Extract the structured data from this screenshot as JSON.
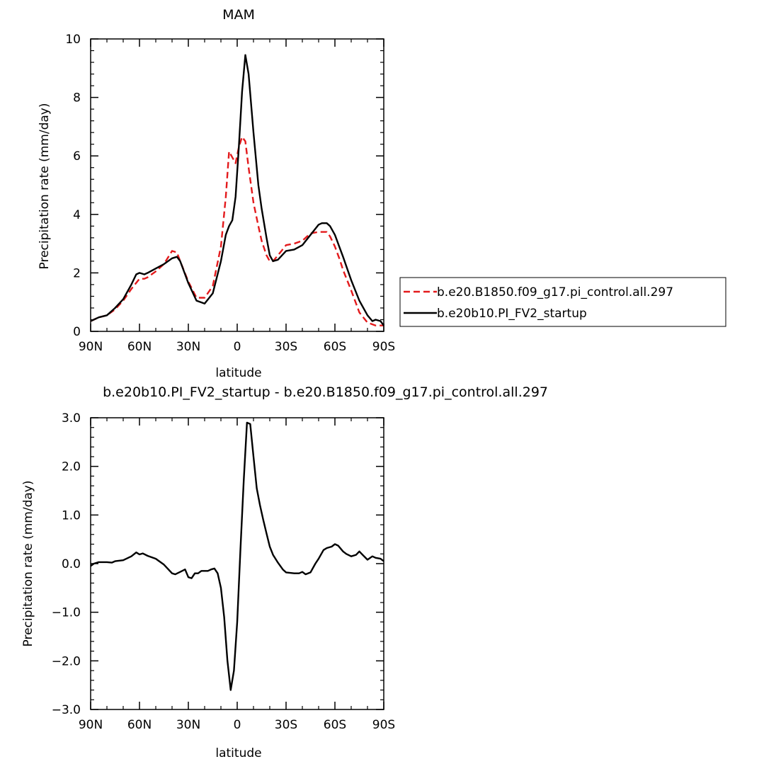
{
  "chart_data": [
    {
      "type": "line",
      "title": "MAM",
      "xlabel": "latitude",
      "ylabel": "Precipitation rate (mm/day)",
      "xlim": [
        -90,
        90
      ],
      "ylim": [
        0,
        10
      ],
      "xticks": [
        {
          "value": -90,
          "label": "90N"
        },
        {
          "value": -60,
          "label": "60N"
        },
        {
          "value": -30,
          "label": "30N"
        },
        {
          "value": 0,
          "label": "0"
        },
        {
          "value": 30,
          "label": "30S"
        },
        {
          "value": 60,
          "label": "60S"
        },
        {
          "value": 90,
          "label": "90S"
        }
      ],
      "yticks": [
        {
          "value": 0,
          "label": "0"
        },
        {
          "value": 2,
          "label": "2"
        },
        {
          "value": 4,
          "label": "4"
        },
        {
          "value": 6,
          "label": "6"
        },
        {
          "value": 8,
          "label": "8"
        },
        {
          "value": 10,
          "label": "10"
        }
      ],
      "grid": false,
      "legend_placement": "right",
      "series": [
        {
          "name": "b.e20.B1850.f09_g17.pi_control.all.297",
          "color": "#e31a1c",
          "dash": "dashed",
          "x": [
            -90,
            -85,
            -80,
            -75,
            -70,
            -65,
            -60,
            -57,
            -55,
            -50,
            -45,
            -40,
            -37,
            -35,
            -30,
            -25,
            -20,
            -15,
            -10,
            -7,
            -5,
            -3,
            -1,
            1,
            3,
            5,
            7,
            10,
            13,
            15,
            18,
            20,
            22,
            25,
            30,
            35,
            40,
            45,
            50,
            55,
            57,
            60,
            63,
            65,
            70,
            75,
            80,
            85,
            88,
            90
          ],
          "values": [
            0.35,
            0.48,
            0.55,
            0.75,
            1.05,
            1.45,
            1.8,
            1.8,
            1.85,
            2.05,
            2.3,
            2.75,
            2.7,
            2.4,
            1.7,
            1.15,
            1.15,
            1.55,
            2.9,
            4.6,
            6.15,
            5.95,
            5.75,
            6.3,
            6.65,
            6.5,
            5.6,
            4.4,
            3.6,
            3.1,
            2.6,
            2.4,
            2.4,
            2.6,
            2.95,
            3.0,
            3.1,
            3.35,
            3.4,
            3.4,
            3.25,
            2.9,
            2.45,
            2.1,
            1.4,
            0.65,
            0.3,
            0.2,
            0.2,
            0.2
          ]
        },
        {
          "name": "b.e20b10.PI_FV2_startup",
          "color": "#000000",
          "dash": "solid",
          "x": [
            -90,
            -85,
            -80,
            -75,
            -70,
            -65,
            -62,
            -60,
            -57,
            -55,
            -50,
            -45,
            -40,
            -37,
            -35,
            -30,
            -25,
            -20,
            -15,
            -10,
            -7,
            -5,
            -3,
            -1,
            1,
            3,
            5,
            7,
            10,
            13,
            15,
            18,
            20,
            22,
            25,
            30,
            35,
            40,
            45,
            50,
            52,
            55,
            57,
            60,
            63,
            65,
            70,
            75,
            80,
            83,
            85,
            88,
            90
          ],
          "values": [
            0.35,
            0.48,
            0.55,
            0.8,
            1.1,
            1.6,
            1.95,
            2.0,
            1.95,
            2.0,
            2.15,
            2.3,
            2.5,
            2.55,
            2.4,
            1.65,
            1.05,
            0.95,
            1.3,
            2.4,
            3.3,
            3.6,
            3.8,
            4.6,
            6.3,
            8.2,
            9.45,
            8.8,
            6.8,
            5.0,
            4.2,
            3.2,
            2.6,
            2.4,
            2.45,
            2.75,
            2.8,
            2.95,
            3.3,
            3.65,
            3.7,
            3.7,
            3.6,
            3.3,
            2.85,
            2.55,
            1.75,
            1.05,
            0.55,
            0.35,
            0.4,
            0.35,
            0.2
          ]
        }
      ]
    },
    {
      "type": "line",
      "title": "b.e20b10.PI_FV2_startup - b.e20.B1850.f09_g17.pi_control.all.297",
      "xlabel": "latitude",
      "ylabel": "Precipitation rate (mm/day)",
      "xlim": [
        -90,
        90
      ],
      "ylim": [
        -3,
        3
      ],
      "xticks": [
        {
          "value": -90,
          "label": "90N"
        },
        {
          "value": -60,
          "label": "60N"
        },
        {
          "value": -30,
          "label": "30N"
        },
        {
          "value": 0,
          "label": "0"
        },
        {
          "value": 30,
          "label": "30S"
        },
        {
          "value": 60,
          "label": "60S"
        },
        {
          "value": 90,
          "label": "90S"
        }
      ],
      "yticks": [
        {
          "value": -3,
          "label": "−3.0"
        },
        {
          "value": -2,
          "label": "−2.0"
        },
        {
          "value": -1,
          "label": "−1.0"
        },
        {
          "value": 0,
          "label": "0.0"
        },
        {
          "value": 1,
          "label": "1.0"
        },
        {
          "value": 2,
          "label": "2.0"
        },
        {
          "value": 3,
          "label": "3.0"
        }
      ],
      "grid": false,
      "series": [
        {
          "color": "#000000",
          "dash": "solid",
          "x": [
            -90,
            -88,
            -85,
            -80,
            -77,
            -75,
            -70,
            -65,
            -62,
            -60,
            -58,
            -55,
            -50,
            -45,
            -40,
            -38,
            -35,
            -32,
            -30,
            -28,
            -26,
            -24,
            -22,
            -20,
            -18,
            -16,
            -14,
            -12,
            -10,
            -8,
            -6,
            -4,
            -2,
            0,
            2,
            4,
            6,
            8,
            10,
            12,
            14,
            16,
            18,
            20,
            22,
            25,
            28,
            30,
            35,
            38,
            40,
            42,
            45,
            48,
            50,
            53,
            55,
            58,
            60,
            62,
            65,
            67,
            70,
            73,
            75,
            77,
            80,
            83,
            85,
            88,
            90
          ],
          "values": [
            -0.05,
            0.0,
            0.03,
            0.03,
            0.02,
            0.05,
            0.07,
            0.15,
            0.23,
            0.19,
            0.21,
            0.16,
            0.1,
            -0.02,
            -0.2,
            -0.22,
            -0.17,
            -0.12,
            -0.28,
            -0.3,
            -0.2,
            -0.2,
            -0.15,
            -0.15,
            -0.15,
            -0.12,
            -0.1,
            -0.2,
            -0.5,
            -1.1,
            -2.0,
            -2.6,
            -2.2,
            -1.2,
            0.3,
            1.7,
            2.9,
            2.87,
            2.2,
            1.55,
            1.2,
            0.9,
            0.62,
            0.35,
            0.18,
            0.02,
            -0.12,
            -0.18,
            -0.2,
            -0.2,
            -0.17,
            -0.22,
            -0.18,
            0.0,
            0.1,
            0.28,
            0.32,
            0.35,
            0.4,
            0.37,
            0.25,
            0.2,
            0.15,
            0.18,
            0.25,
            0.18,
            0.08,
            0.15,
            0.12,
            0.1,
            0.05
          ]
        }
      ]
    }
  ]
}
